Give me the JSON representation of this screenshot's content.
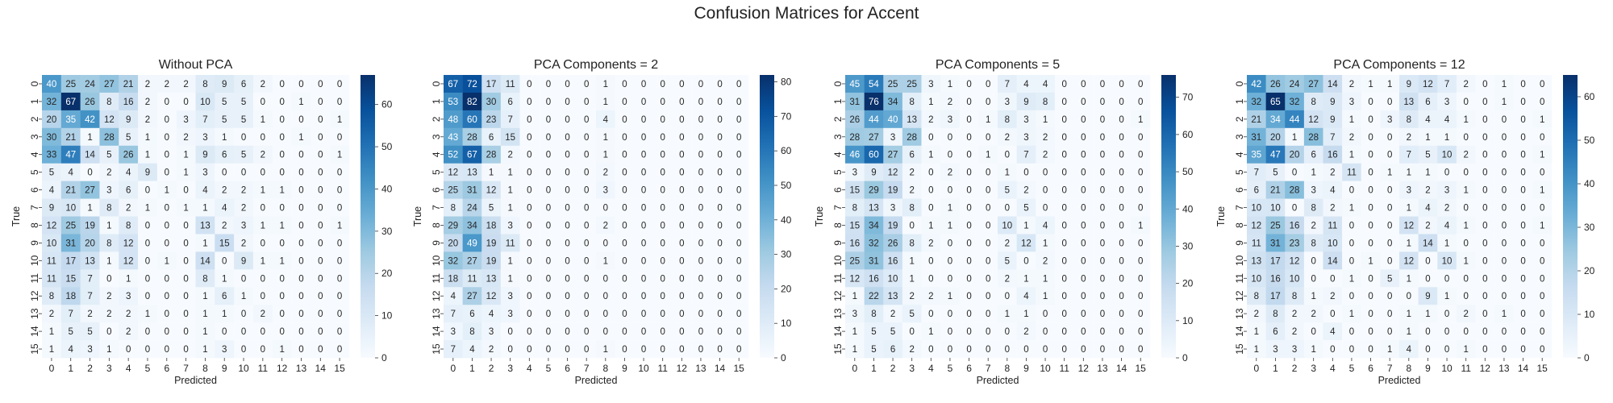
{
  "figure_title": "Confusion Matrices for Accent",
  "colors": {
    "low": "#f7fbff",
    "high": "#08306b",
    "text_dark": "#262626",
    "text_light": "#ffffff"
  },
  "chart_data": [
    {
      "type": "heatmap",
      "title": "Without PCA",
      "xlabel": "Predicted",
      "ylabel": "True",
      "x_ticks": [
        "0",
        "1",
        "2",
        "3",
        "4",
        "5",
        "6",
        "7",
        "8",
        "9",
        "10",
        "11",
        "12",
        "13",
        "14",
        "15"
      ],
      "y_ticks": [
        "0",
        "1",
        "2",
        "3",
        "4",
        "5",
        "6",
        "7",
        "8",
        "9",
        "10",
        "11",
        "12",
        "13",
        "14",
        "15"
      ],
      "colorbar_ticks": [
        0,
        10,
        20,
        30,
        40,
        50,
        60
      ],
      "vmin": 0,
      "vmax": 67,
      "cmap": "Blues",
      "values": [
        [
          40,
          25,
          24,
          27,
          21,
          2,
          2,
          2,
          8,
          9,
          6,
          2,
          0,
          0,
          0,
          0
        ],
        [
          32,
          67,
          26,
          8,
          16,
          2,
          0,
          0,
          10,
          5,
          5,
          0,
          0,
          1,
          0,
          0
        ],
        [
          20,
          35,
          42,
          12,
          9,
          2,
          0,
          3,
          7,
          5,
          5,
          1,
          0,
          0,
          0,
          1
        ],
        [
          30,
          21,
          1,
          28,
          5,
          1,
          0,
          2,
          3,
          1,
          0,
          0,
          0,
          1,
          0,
          0
        ],
        [
          33,
          47,
          14,
          5,
          26,
          1,
          0,
          1,
          9,
          6,
          5,
          2,
          0,
          0,
          0,
          1
        ],
        [
          5,
          4,
          0,
          2,
          4,
          9,
          0,
          1,
          3,
          0,
          0,
          0,
          0,
          0,
          0,
          0
        ],
        [
          4,
          21,
          27,
          3,
          6,
          0,
          1,
          0,
          4,
          2,
          2,
          1,
          1,
          0,
          0,
          0
        ],
        [
          9,
          10,
          1,
          8,
          2,
          1,
          0,
          1,
          1,
          4,
          2,
          0,
          0,
          0,
          0,
          0
        ],
        [
          12,
          25,
          19,
          1,
          8,
          0,
          0,
          0,
          13,
          2,
          3,
          1,
          1,
          0,
          0,
          1
        ],
        [
          10,
          31,
          20,
          8,
          12,
          0,
          0,
          0,
          1,
          15,
          2,
          0,
          0,
          0,
          0,
          0
        ],
        [
          11,
          17,
          13,
          1,
          12,
          0,
          1,
          0,
          14,
          0,
          9,
          1,
          1,
          0,
          0,
          0
        ],
        [
          11,
          15,
          7,
          0,
          1,
          0,
          0,
          0,
          8,
          1,
          0,
          0,
          0,
          0,
          0,
          0
        ],
        [
          8,
          18,
          7,
          2,
          3,
          0,
          0,
          0,
          1,
          6,
          1,
          0,
          0,
          0,
          0,
          0
        ],
        [
          2,
          7,
          2,
          2,
          2,
          1,
          0,
          0,
          1,
          1,
          0,
          2,
          0,
          0,
          0,
          0
        ],
        [
          1,
          5,
          5,
          0,
          2,
          0,
          0,
          0,
          1,
          0,
          0,
          0,
          0,
          0,
          0,
          0
        ],
        [
          1,
          4,
          3,
          1,
          0,
          0,
          0,
          0,
          1,
          3,
          0,
          0,
          1,
          0,
          0,
          0
        ]
      ]
    },
    {
      "type": "heatmap",
      "title": "PCA Components = 2",
      "xlabel": "Predicted",
      "ylabel": "True",
      "x_ticks": [
        "0",
        "1",
        "2",
        "3",
        "4",
        "5",
        "6",
        "7",
        "8",
        "9",
        "10",
        "11",
        "12",
        "13",
        "14",
        "15"
      ],
      "y_ticks": [
        "0",
        "1",
        "2",
        "3",
        "4",
        "5",
        "6",
        "7",
        "8",
        "9",
        "10",
        "11",
        "12",
        "13",
        "14",
        "15"
      ],
      "colorbar_ticks": [
        0,
        10,
        20,
        30,
        40,
        50,
        60,
        70,
        80
      ],
      "vmin": 0,
      "vmax": 82,
      "cmap": "Blues",
      "values": [
        [
          67,
          72,
          17,
          11,
          0,
          0,
          0,
          0,
          1,
          0,
          0,
          0,
          0,
          0,
          0,
          0
        ],
        [
          53,
          82,
          30,
          6,
          0,
          0,
          0,
          0,
          1,
          0,
          0,
          0,
          0,
          0,
          0,
          0
        ],
        [
          48,
          60,
          23,
          7,
          0,
          0,
          0,
          0,
          4,
          0,
          0,
          0,
          0,
          0,
          0,
          0
        ],
        [
          43,
          28,
          6,
          15,
          0,
          0,
          0,
          0,
          1,
          0,
          0,
          0,
          0,
          0,
          0,
          0
        ],
        [
          52,
          67,
          28,
          2,
          0,
          0,
          0,
          0,
          1,
          0,
          0,
          0,
          0,
          0,
          0,
          0
        ],
        [
          12,
          13,
          1,
          1,
          0,
          0,
          0,
          0,
          2,
          0,
          0,
          0,
          0,
          0,
          0,
          0
        ],
        [
          25,
          31,
          12,
          1,
          0,
          0,
          0,
          0,
          3,
          0,
          0,
          0,
          0,
          0,
          0,
          0
        ],
        [
          8,
          24,
          5,
          1,
          0,
          0,
          0,
          0,
          0,
          0,
          0,
          0,
          0,
          0,
          0,
          0
        ],
        [
          29,
          34,
          18,
          3,
          0,
          0,
          0,
          0,
          2,
          0,
          0,
          0,
          0,
          0,
          0,
          0
        ],
        [
          20,
          49,
          19,
          11,
          0,
          0,
          0,
          0,
          0,
          0,
          0,
          0,
          0,
          0,
          0,
          0
        ],
        [
          32,
          27,
          19,
          1,
          0,
          0,
          0,
          0,
          1,
          0,
          0,
          0,
          0,
          0,
          0,
          0
        ],
        [
          18,
          11,
          13,
          1,
          0,
          0,
          0,
          0,
          0,
          0,
          0,
          0,
          0,
          0,
          0,
          0
        ],
        [
          4,
          27,
          12,
          3,
          0,
          0,
          0,
          0,
          0,
          0,
          0,
          0,
          0,
          0,
          0,
          0
        ],
        [
          7,
          6,
          4,
          3,
          0,
          0,
          0,
          0,
          0,
          0,
          0,
          0,
          0,
          0,
          0,
          0
        ],
        [
          3,
          8,
          3,
          0,
          0,
          0,
          0,
          0,
          0,
          0,
          0,
          0,
          0,
          0,
          0,
          0
        ],
        [
          7,
          4,
          2,
          0,
          0,
          0,
          0,
          0,
          1,
          0,
          0,
          0,
          0,
          0,
          0,
          0
        ]
      ]
    },
    {
      "type": "heatmap",
      "title": "PCA Components = 5",
      "xlabel": "Predicted",
      "ylabel": "True",
      "x_ticks": [
        "0",
        "1",
        "2",
        "3",
        "4",
        "5",
        "6",
        "7",
        "8",
        "9",
        "10",
        "11",
        "12",
        "13",
        "14",
        "15"
      ],
      "y_ticks": [
        "0",
        "1",
        "2",
        "3",
        "4",
        "5",
        "6",
        "7",
        "8",
        "9",
        "10",
        "11",
        "12",
        "13",
        "14",
        "15"
      ],
      "colorbar_ticks": [
        0,
        10,
        20,
        30,
        40,
        50,
        60,
        70
      ],
      "vmin": 0,
      "vmax": 76,
      "cmap": "Blues",
      "values": [
        [
          45,
          54,
          25,
          25,
          3,
          1,
          0,
          0,
          7,
          4,
          4,
          0,
          0,
          0,
          0,
          0
        ],
        [
          31,
          76,
          34,
          8,
          1,
          2,
          0,
          0,
          3,
          9,
          8,
          0,
          0,
          0,
          0,
          0
        ],
        [
          26,
          44,
          40,
          13,
          2,
          3,
          0,
          1,
          8,
          3,
          1,
          0,
          0,
          0,
          0,
          1
        ],
        [
          28,
          27,
          3,
          28,
          0,
          0,
          0,
          0,
          2,
          3,
          2,
          0,
          0,
          0,
          0,
          0
        ],
        [
          46,
          60,
          27,
          6,
          1,
          0,
          0,
          1,
          0,
          7,
          2,
          0,
          0,
          0,
          0,
          0
        ],
        [
          3,
          9,
          12,
          2,
          0,
          2,
          0,
          0,
          1,
          0,
          0,
          0,
          0,
          0,
          0,
          0
        ],
        [
          15,
          29,
          19,
          2,
          0,
          0,
          0,
          0,
          5,
          2,
          0,
          0,
          0,
          0,
          0,
          0
        ],
        [
          8,
          13,
          3,
          8,
          0,
          1,
          0,
          0,
          0,
          5,
          0,
          0,
          0,
          0,
          0,
          0
        ],
        [
          15,
          34,
          19,
          0,
          1,
          1,
          0,
          0,
          10,
          1,
          4,
          0,
          0,
          0,
          0,
          1
        ],
        [
          16,
          32,
          26,
          8,
          2,
          0,
          0,
          0,
          2,
          12,
          1,
          0,
          0,
          0,
          0,
          0
        ],
        [
          25,
          31,
          16,
          1,
          0,
          0,
          0,
          0,
          5,
          0,
          2,
          0,
          0,
          0,
          0,
          0
        ],
        [
          12,
          16,
          10,
          1,
          0,
          0,
          0,
          0,
          2,
          1,
          1,
          0,
          0,
          0,
          0,
          0
        ],
        [
          1,
          22,
          13,
          2,
          2,
          1,
          0,
          0,
          0,
          4,
          1,
          0,
          0,
          0,
          0,
          0
        ],
        [
          3,
          8,
          2,
          5,
          0,
          0,
          0,
          0,
          1,
          1,
          0,
          0,
          0,
          0,
          0,
          0
        ],
        [
          1,
          5,
          5,
          0,
          1,
          0,
          0,
          0,
          0,
          2,
          0,
          0,
          0,
          0,
          0,
          0
        ],
        [
          1,
          5,
          6,
          2,
          0,
          0,
          0,
          0,
          0,
          0,
          0,
          0,
          0,
          0,
          0,
          0
        ]
      ]
    },
    {
      "type": "heatmap",
      "title": "PCA Components = 12",
      "xlabel": "Predicted",
      "ylabel": "True",
      "x_ticks": [
        "0",
        "1",
        "2",
        "3",
        "4",
        "5",
        "6",
        "7",
        "8",
        "9",
        "10",
        "11",
        "12",
        "13",
        "14",
        "15"
      ],
      "y_ticks": [
        "0",
        "1",
        "2",
        "3",
        "4",
        "5",
        "6",
        "7",
        "8",
        "9",
        "10",
        "11",
        "12",
        "13",
        "14",
        "15"
      ],
      "colorbar_ticks": [
        0,
        10,
        20,
        30,
        40,
        50,
        60
      ],
      "vmin": 0,
      "vmax": 65,
      "cmap": "Blues",
      "values": [
        [
          42,
          26,
          24,
          27,
          14,
          2,
          1,
          1,
          9,
          12,
          7,
          2,
          0,
          1,
          0,
          0
        ],
        [
          32,
          65,
          32,
          8,
          9,
          3,
          0,
          0,
          13,
          6,
          3,
          0,
          0,
          1,
          0,
          0
        ],
        [
          21,
          34,
          44,
          12,
          9,
          1,
          0,
          3,
          8,
          4,
          4,
          1,
          0,
          0,
          0,
          1
        ],
        [
          31,
          20,
          1,
          28,
          7,
          2,
          0,
          0,
          2,
          1,
          1,
          0,
          0,
          0,
          0,
          0
        ],
        [
          35,
          47,
          20,
          6,
          16,
          1,
          0,
          0,
          7,
          5,
          10,
          2,
          0,
          0,
          0,
          1
        ],
        [
          7,
          5,
          0,
          1,
          2,
          11,
          0,
          1,
          1,
          1,
          0,
          0,
          0,
          0,
          0,
          0
        ],
        [
          6,
          21,
          28,
          3,
          4,
          0,
          0,
          0,
          3,
          2,
          3,
          1,
          0,
          0,
          0,
          1
        ],
        [
          10,
          10,
          0,
          8,
          2,
          1,
          0,
          0,
          1,
          4,
          2,
          0,
          0,
          0,
          0,
          0
        ],
        [
          12,
          25,
          16,
          2,
          11,
          0,
          0,
          0,
          12,
          2,
          4,
          1,
          0,
          0,
          0,
          1
        ],
        [
          11,
          31,
          23,
          8,
          10,
          0,
          0,
          0,
          1,
          14,
          1,
          0,
          0,
          0,
          0,
          0
        ],
        [
          13,
          17,
          12,
          0,
          14,
          0,
          1,
          0,
          12,
          0,
          10,
          1,
          0,
          0,
          0,
          0
        ],
        [
          10,
          16,
          10,
          0,
          0,
          1,
          0,
          5,
          1,
          0,
          0,
          0,
          0,
          0,
          0,
          0
        ],
        [
          8,
          17,
          8,
          1,
          2,
          0,
          0,
          0,
          0,
          9,
          1,
          0,
          0,
          0,
          0,
          0
        ],
        [
          2,
          8,
          2,
          2,
          0,
          1,
          0,
          0,
          1,
          1,
          0,
          2,
          0,
          1,
          0,
          0
        ],
        [
          1,
          6,
          2,
          0,
          4,
          0,
          0,
          0,
          1,
          0,
          0,
          0,
          0,
          0,
          0,
          0
        ],
        [
          1,
          3,
          3,
          1,
          0,
          0,
          0,
          1,
          4,
          0,
          0,
          1,
          0,
          0,
          0,
          0
        ]
      ]
    }
  ]
}
